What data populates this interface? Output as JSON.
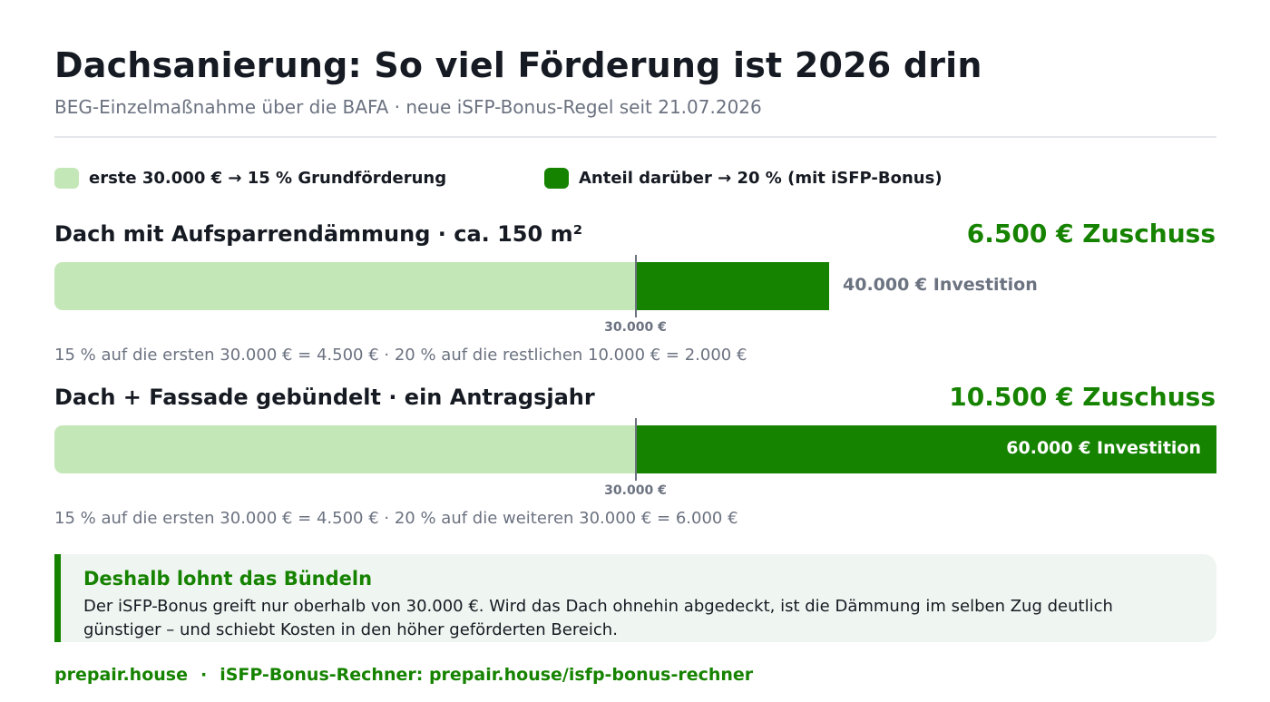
{
  "header": {
    "title": "Dachsanierung: So viel Förderung ist 2026 drin",
    "subtitle": "BEG-Einzelmaßnahme über die BAFA · neue iSFP-Bonus-Regel seit 21.07.2026"
  },
  "legend": [
    {
      "label": "erste 30.000 € → 15 % Grundförderung",
      "color": "#c4e7b8"
    },
    {
      "label": "Anteil darüber → 20 % (mit iSFP-Bonus)",
      "color": "#168300"
    }
  ],
  "colors": {
    "base": "#c4e7b8",
    "bonus": "#168300",
    "accent": "#168300",
    "marker": "#6b7280"
  },
  "chart_data": {
    "type": "bar",
    "orientation": "horizontal",
    "stacked": true,
    "xlim": [
      0,
      60000
    ],
    "threshold": 30000,
    "threshold_label": "30.000 €",
    "series_names": [
      "erste 30.000 € → 15 % Grundförderung",
      "Anteil darüber → 20 % (mit iSFP-Bonus)"
    ],
    "bars": [
      {
        "title": "Dach mit Aufsparrendämmung · ca. 150 m²",
        "amount_label": "6.500 € Zuschuss",
        "investment": 40000,
        "investment_label": "40.000 € Investition",
        "segments": [
          30000,
          10000
        ],
        "label_inside": false,
        "calc_text": "15 % auf die ersten 30.000 € = 4.500 € · 20 % auf die restlichen 10.000 € = 2.000 €"
      },
      {
        "title": "Dach + Fassade gebündelt · ein Antragsjahr",
        "amount_label": "10.500 € Zuschuss",
        "investment": 60000,
        "investment_label": "60.000 € Investition",
        "segments": [
          30000,
          30000
        ],
        "label_inside": true,
        "calc_text": "15 % auf die ersten 30.000 € = 4.500 € · 20 % auf die weiteren 30.000 € = 6.000 €"
      }
    ]
  },
  "note": {
    "title": "Deshalb lohnt das Bündeln",
    "text": "Der iSFP-Bonus greift nur oberhalb von 30.000 €. Wird das Dach ohnehin abgedeckt, ist die Dämmung im selben Zug deutlich günstiger – und schiebt Kosten in den höher geförderten Bereich."
  },
  "footer": {
    "brand": "prepair.house",
    "separator": "·",
    "link_text": "iSFP-Bonus-Rechner: prepair.house/isfp-bonus-rechner"
  }
}
